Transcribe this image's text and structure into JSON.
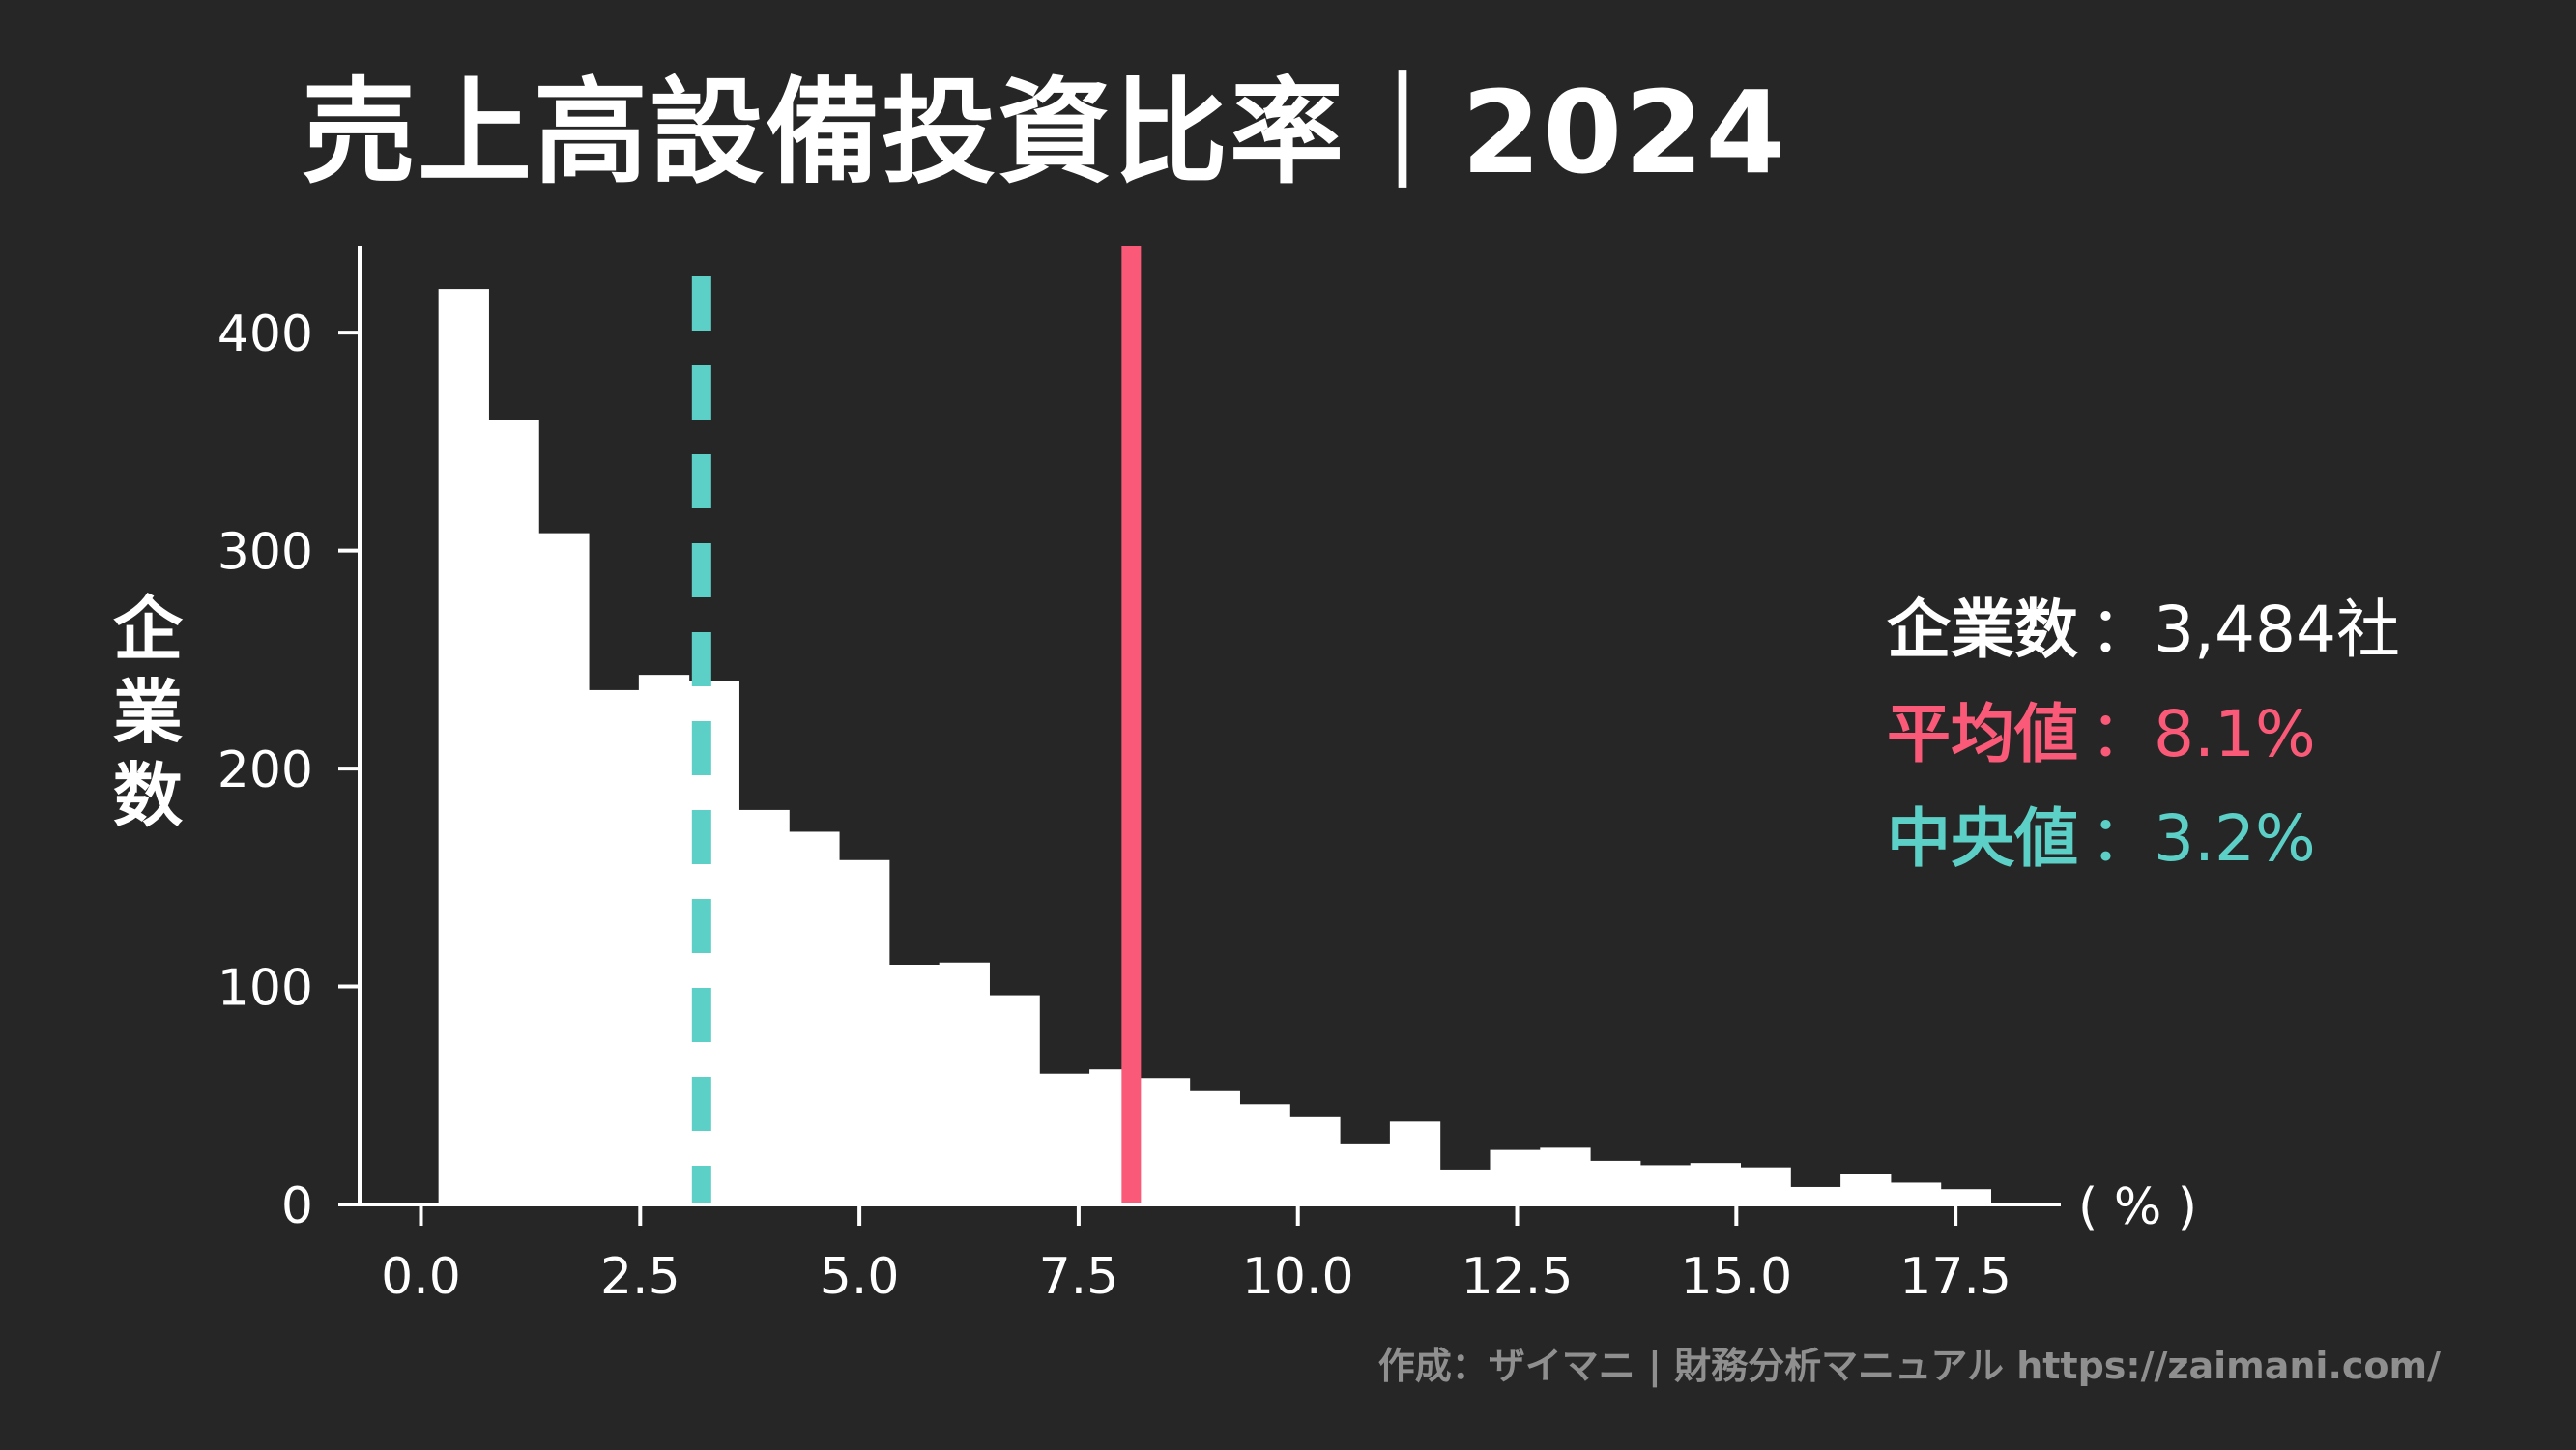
{
  "title": "売上高設備投資比率｜2024",
  "y_axis_label": [
    "企",
    "業",
    "数"
  ],
  "x_unit_label": "( % )",
  "stats": {
    "companies_label": "企業数",
    "companies_value": "：3,484社",
    "mean_label": "平均値",
    "mean_value": "：8.1%",
    "median_label": "中央値",
    "median_value": "：3.2%"
  },
  "credit": "作成：ザイマニ | 財務分析マニュアル https://zaimani.com/",
  "colors": {
    "background": "#262626",
    "bars": "#ffffff",
    "mean": "#fa5a78",
    "median": "#5ccfc6"
  },
  "chart_data": {
    "type": "bar",
    "bin_width": 0.571,
    "bin_start": 0.2,
    "values": [
      420,
      360,
      308,
      236,
      243,
      240,
      181,
      171,
      158,
      110,
      111,
      96,
      60,
      62,
      58,
      52,
      46,
      40,
      28,
      38,
      16,
      25,
      26,
      20,
      18,
      19,
      17,
      8,
      14,
      10,
      7
    ],
    "mean": 8.1,
    "median": 3.2,
    "xlim": [
      -0.7,
      18.7
    ],
    "ylim": [
      0,
      440
    ],
    "xticks": [
      "0.0",
      "2.5",
      "5.0",
      "7.5",
      "10.0",
      "12.5",
      "15.0",
      "17.5"
    ],
    "xtick_values": [
      0,
      2.5,
      5,
      7.5,
      10,
      12.5,
      15,
      17.5
    ],
    "yticks": [
      "0",
      "100",
      "200",
      "300",
      "400"
    ],
    "ytick_values": [
      0,
      100,
      200,
      300,
      400
    ],
    "grid": false,
    "legend": "none"
  }
}
